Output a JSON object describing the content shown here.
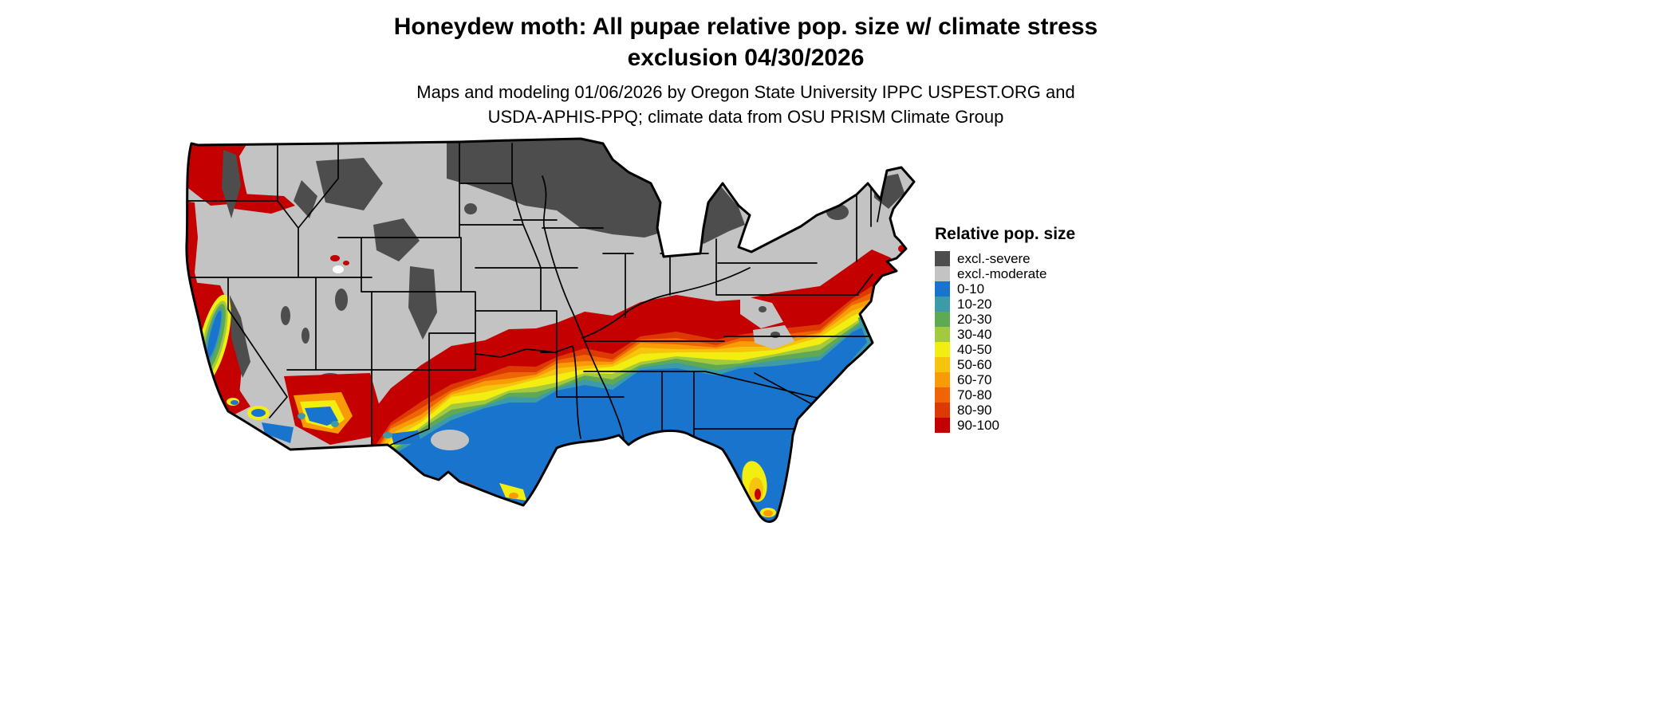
{
  "header": {
    "title_line1": "Honeydew moth: All pupae relative pop. size w/ climate stress",
    "title_line2": "exclusion 04/30/2026",
    "subtitle_line1": "Maps and modeling 01/06/2026 by Oregon State University IPPC USPEST.ORG and",
    "subtitle_line2": "USDA-APHIS-PPQ; climate data from OSU PRISM Climate Group"
  },
  "legend": {
    "title": "Relative pop. size",
    "items": [
      {
        "label": "excl.-severe",
        "color": "#4D4D4D"
      },
      {
        "label": "excl.-moderate",
        "color": "#C3C3C3"
      },
      {
        "label": "0-10",
        "color": "#1874CD"
      },
      {
        "label": "10-20",
        "color": "#3D9BA9"
      },
      {
        "label": "20-30",
        "color": "#5FA854"
      },
      {
        "label": "30-40",
        "color": "#A3C93E"
      },
      {
        "label": "40-50",
        "color": "#F2EE11"
      },
      {
        "label": "50-60",
        "color": "#F6C30D"
      },
      {
        "label": "60-70",
        "color": "#F89B07"
      },
      {
        "label": "70-80",
        "color": "#EF6505"
      },
      {
        "label": "80-90",
        "color": "#DC3903"
      },
      {
        "label": "90-100",
        "color": "#C40000"
      }
    ]
  }
}
